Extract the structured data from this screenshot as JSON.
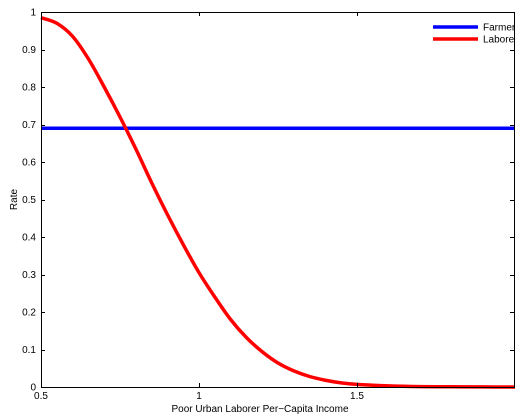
{
  "chart_data": {
    "type": "line",
    "title": "",
    "xlabel": "Poor Urban Laborer Per−Capita Income",
    "ylabel": "Rate",
    "xlim": [
      0.5,
      2.0
    ],
    "ylim": [
      0,
      1
    ],
    "x_ticks": [
      {
        "value": 0.5,
        "label": "0.5"
      },
      {
        "value": 1.0,
        "label": "1"
      },
      {
        "value": 1.5,
        "label": "1.5"
      }
    ],
    "y_ticks": [
      {
        "value": 0,
        "label": "0"
      },
      {
        "value": 0.1,
        "label": "0.1"
      },
      {
        "value": 0.2,
        "label": "0.2"
      },
      {
        "value": 0.3,
        "label": "0.3"
      },
      {
        "value": 0.4,
        "label": "0.4"
      },
      {
        "value": 0.5,
        "label": "0.5"
      },
      {
        "value": 0.6,
        "label": "0.6"
      },
      {
        "value": 0.7,
        "label": "0.7"
      },
      {
        "value": 0.8,
        "label": "0.8"
      },
      {
        "value": 0.9,
        "label": "0.9"
      },
      {
        "value": 1,
        "label": "1"
      }
    ],
    "grid": false,
    "legend_position": "top-right",
    "series": [
      {
        "name": "Farmers",
        "color": "#0000ff",
        "x": [
          0.5,
          2.0
        ],
        "y": [
          0.69,
          0.69
        ]
      },
      {
        "name": "Laborers",
        "color": "#ff0000",
        "x": [
          0.5,
          0.55,
          0.6,
          0.65,
          0.7,
          0.75,
          0.8,
          0.85,
          0.9,
          0.95,
          1.0,
          1.05,
          1.1,
          1.15,
          1.2,
          1.25,
          1.3,
          1.35,
          1.4,
          1.45,
          1.5,
          1.6,
          1.7,
          1.8,
          1.9,
          2.0
        ],
        "y": [
          0.985,
          0.97,
          0.935,
          0.875,
          0.8,
          0.72,
          0.635,
          0.545,
          0.46,
          0.38,
          0.305,
          0.24,
          0.18,
          0.132,
          0.094,
          0.064,
          0.043,
          0.028,
          0.018,
          0.011,
          0.007,
          0.003,
          0.001,
          0.0005,
          0.0002,
          0.0001
        ]
      }
    ]
  }
}
